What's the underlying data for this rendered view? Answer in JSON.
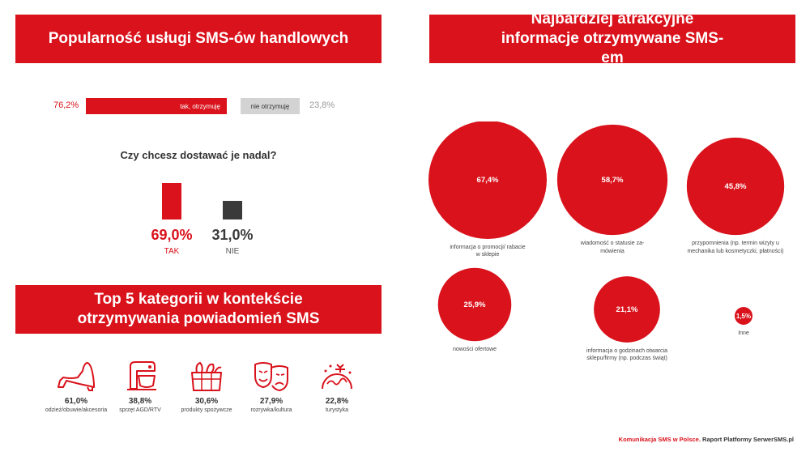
{
  "left": {
    "title": "Popularność usługi SMS-ów handlowych",
    "receive": {
      "yes_pct": "76,2%",
      "yes_label": "tak, otrzymuję",
      "no_label": "nie otrzymuję",
      "no_pct": "23,8%"
    },
    "question": "Czy chcesz dostawać je nadal?",
    "answers": {
      "yes_value": "69,0%",
      "yes_label": "TAK",
      "no_value": "31,0%",
      "no_label": "NIE"
    }
  },
  "categories": {
    "title": "Top 5 kategorii w kontekście otrzymywania powiadomień SMS",
    "items": [
      {
        "value": "61,0%",
        "label": "odzież/obuwie/akcesoria",
        "icon": "shoe-icon"
      },
      {
        "value": "38,8%",
        "label": "sprzęt AGD/RTV",
        "icon": "mixer-icon"
      },
      {
        "value": "30,6%",
        "label": "produkty spożywcze",
        "icon": "grocery-box-icon"
      },
      {
        "value": "27,9%",
        "label": "rozrywka/kultura",
        "icon": "theater-masks-icon"
      },
      {
        "value": "22,8%",
        "label": "turystyka",
        "icon": "travel-globe-icon"
      }
    ]
  },
  "right": {
    "title": "Najbardziej atrakcyjne informacje otrzymywane SMS-em"
  },
  "chart_data": [
    {
      "type": "bar",
      "categories": [
        "tak, otrzymuję",
        "nie otrzymuję"
      ],
      "values": [
        76.2,
        23.8
      ]
    },
    {
      "type": "bar",
      "title": "Czy chcesz dostawać je nadal?",
      "categories": [
        "TAK",
        "NIE"
      ],
      "values": [
        69.0,
        31.0
      ]
    },
    {
      "type": "bar",
      "title": "Top 5 kategorii w kontekście otrzymywania powiadomień SMS",
      "categories": [
        "odzież/obuwie/akcesoria",
        "sprzęt AGD/RTV",
        "produkty spożywcze",
        "rozrywka/kultura",
        "turystyka"
      ],
      "values": [
        61.0,
        38.8,
        30.6,
        27.9,
        22.8
      ]
    },
    {
      "type": "scatter",
      "title": "Najbardziej atrakcyjne informacje otrzymywane SMS-em",
      "points": [
        {
          "label": "informacja o promocji/ rabacie w sklepie",
          "value": 67.4,
          "text": "67,4%"
        },
        {
          "label": "wiadomość o statusie za- mówienia",
          "value": 58.7,
          "text": "58,7%"
        },
        {
          "label": "przypomnienia (np. termin wizyty u mechanika lub kosmetyczki, płatności)",
          "value": 45.8,
          "text": "45,8%"
        },
        {
          "label": "nowości ofertowe",
          "value": 25.9,
          "text": "25,9%"
        },
        {
          "label": "informacja o godzinach otwarcia sklepu/firmy (np. podczas świąt)",
          "value": 21.1,
          "text": "21,1%"
        },
        {
          "label": "Inne",
          "value": 1.5,
          "text": "1,5%"
        }
      ],
      "color": "#d9121b"
    }
  ],
  "footer": {
    "red": "Komunikacja SMS w Polsce.",
    "dark": "Raport Platformy SerwerSMS.pl"
  },
  "colors": {
    "accent": "#d9121b",
    "dark": "#3a3a3a",
    "grey": "#d3d3d3"
  }
}
